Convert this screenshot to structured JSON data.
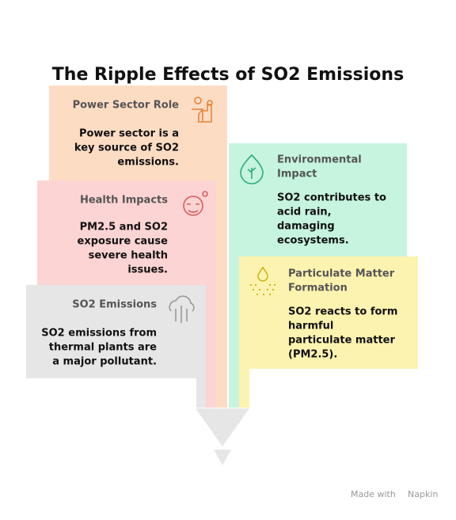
{
  "title": "The Ripple Effects of SO2 Emissions",
  "cards": [
    {
      "title": [
        "Power Sector Role"
      ],
      "body": [
        "Power sector is a",
        "key source of SO2",
        "emissions."
      ]
    },
    {
      "title": [
        "Health Impacts"
      ],
      "body": [
        "PM2.5 and SO2",
        "exposure cause",
        "severe health",
        "issues."
      ]
    },
    {
      "title": [
        "SO2 Emissions"
      ],
      "body": [
        "SO2 emissions from",
        "thermal plants are",
        "a major pollutant."
      ]
    },
    {
      "title": [
        "Environmental",
        "Impact"
      ],
      "body": [
        "SO2 contributes to",
        "acid rain,",
        "damaging",
        "ecosystems."
      ]
    },
    {
      "title": [
        "Particulate Matter",
        "Formation"
      ],
      "body": [
        "SO2 reacts to form",
        "harmful",
        "particulate matter",
        "(PM2.5)."
      ]
    }
  ],
  "footer": {
    "prefix": "Made with",
    "brand": "Napkin"
  }
}
